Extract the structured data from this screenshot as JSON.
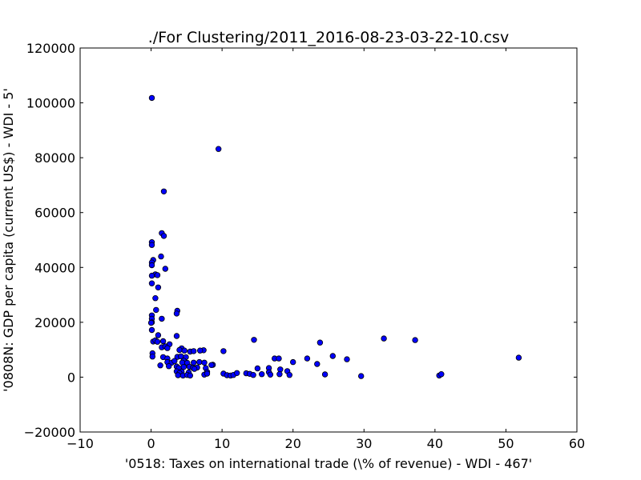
{
  "chart_data": {
    "type": "scatter",
    "title": "./For Clustering/2011_2016-08-23-03-22-10.csv",
    "xlabel": "'0518: Taxes on international trade  (\\% of revenue) - WDI - 467'",
    "ylabel": "'0808N: GDP per capita  (current US$) - WDI - 5'",
    "xlim": [
      -10,
      60
    ],
    "ylim": [
      -20000,
      120000
    ],
    "xticks": [
      -10,
      0,
      10,
      20,
      30,
      40,
      50,
      60
    ],
    "xtick_labels": [
      "−10",
      "0",
      "10",
      "20",
      "30",
      "40",
      "50",
      "60"
    ],
    "yticks": [
      -20000,
      0,
      20000,
      40000,
      60000,
      80000,
      100000,
      120000
    ],
    "ytick_labels": [
      "−20000",
      "0",
      "20000",
      "40000",
      "60000",
      "80000",
      "100000",
      "120000"
    ],
    "grid": false,
    "marker_color": "#0000ff",
    "marker_edge_color": "#000000",
    "points": [
      [
        0.1,
        101800
      ],
      [
        9.5,
        83200
      ],
      [
        1.8,
        67700
      ],
      [
        1.5,
        52500
      ],
      [
        1.8,
        51500
      ],
      [
        0.1,
        49200
      ],
      [
        0.1,
        48200
      ],
      [
        1.4,
        44000
      ],
      [
        0.3,
        42700
      ],
      [
        0.1,
        41800
      ],
      [
        0.1,
        40800
      ],
      [
        2.0,
        39500
      ],
      [
        0.6,
        37500
      ],
      [
        0.9,
        37200
      ],
      [
        0.1,
        37000
      ],
      [
        0.1,
        34200
      ],
      [
        1.0,
        32700
      ],
      [
        0.6,
        28800
      ],
      [
        0.7,
        24500
      ],
      [
        3.7,
        24200
      ],
      [
        3.6,
        23200
      ],
      [
        0.1,
        22500
      ],
      [
        0.1,
        21300
      ],
      [
        1.5,
        21300
      ],
      [
        0.1,
        20000
      ],
      [
        0.0,
        19800
      ],
      [
        0.1,
        17200
      ],
      [
        3.6,
        15000
      ],
      [
        1.0,
        15300
      ],
      [
        0.3,
        13000
      ],
      [
        0.6,
        13400
      ],
      [
        0.9,
        12900
      ],
      [
        1.7,
        13100
      ],
      [
        2.6,
        12000
      ],
      [
        14.5,
        13600
      ],
      [
        23.8,
        12600
      ],
      [
        32.8,
        14100
      ],
      [
        37.2,
        13500
      ],
      [
        1.5,
        10900
      ],
      [
        2.0,
        11200
      ],
      [
        2.3,
        10600
      ],
      [
        4.3,
        10500
      ],
      [
        4.0,
        9900
      ],
      [
        4.7,
        9700
      ],
      [
        5.5,
        9300
      ],
      [
        6.0,
        9500
      ],
      [
        7.4,
        9800
      ],
      [
        10.2,
        9500
      ],
      [
        6.9,
        9700
      ],
      [
        0.2,
        8700
      ],
      [
        0.2,
        7500
      ],
      [
        1.7,
        7300
      ],
      [
        2.3,
        6800
      ],
      [
        3.7,
        7400
      ],
      [
        4.2,
        7600
      ],
      [
        4.9,
        7300
      ],
      [
        17.4,
        6800
      ],
      [
        18.0,
        6800
      ],
      [
        22.0,
        6800
      ],
      [
        25.6,
        7700
      ],
      [
        27.6,
        6500
      ],
      [
        51.8,
        7100
      ],
      [
        2.3,
        5500
      ],
      [
        2.9,
        5300
      ],
      [
        3.3,
        5900
      ],
      [
        4.6,
        6000
      ],
      [
        4.4,
        5300
      ],
      [
        5.1,
        5200
      ],
      [
        6.0,
        5300
      ],
      [
        6.8,
        5500
      ],
      [
        7.5,
        5300
      ],
      [
        8.7,
        4500
      ],
      [
        20.0,
        5500
      ],
      [
        23.4,
        4800
      ],
      [
        1.3,
        4300
      ],
      [
        2.5,
        4000
      ],
      [
        3.6,
        3900
      ],
      [
        3.9,
        3300
      ],
      [
        4.6,
        3700
      ],
      [
        5.4,
        3800
      ],
      [
        5.9,
        3400
      ],
      [
        6.5,
        3500
      ],
      [
        6.1,
        3000
      ],
      [
        7.7,
        3300
      ],
      [
        8.5,
        4400
      ],
      [
        15.0,
        3200
      ],
      [
        16.6,
        3300
      ],
      [
        18.2,
        2800
      ],
      [
        19.2,
        2200
      ],
      [
        3.6,
        2100
      ],
      [
        4.3,
        2000
      ],
      [
        4.0,
        1500
      ],
      [
        5.3,
        1700
      ],
      [
        3.8,
        700
      ],
      [
        4.5,
        600
      ],
      [
        5.1,
        800
      ],
      [
        5.5,
        600
      ],
      [
        7.5,
        900
      ],
      [
        7.9,
        1900
      ],
      [
        7.9,
        1300
      ],
      [
        10.2,
        1300
      ],
      [
        10.7,
        700
      ],
      [
        11.2,
        600
      ],
      [
        11.6,
        800
      ],
      [
        12.1,
        1500
      ],
      [
        13.4,
        1400
      ],
      [
        13.9,
        1200
      ],
      [
        14.4,
        800
      ],
      [
        15.6,
        1100
      ],
      [
        16.6,
        1800
      ],
      [
        16.8,
        900
      ],
      [
        18.1,
        1100
      ],
      [
        19.5,
        800
      ],
      [
        24.5,
        1000
      ],
      [
        29.6,
        400
      ],
      [
        40.6,
        600
      ],
      [
        40.9,
        1100
      ]
    ]
  }
}
